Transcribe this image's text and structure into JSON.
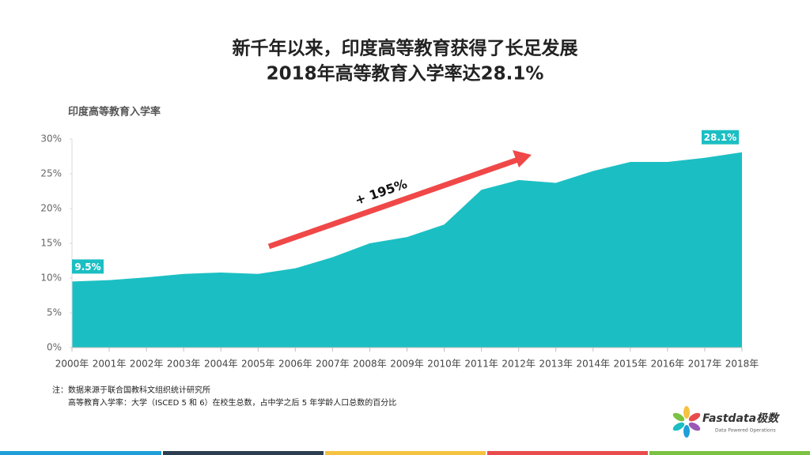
{
  "chart_data": {
    "type": "area",
    "title": "新千年以来，印度高等教育获得了长足发展",
    "subtitle": "2018年高等教育入学率达28.1%",
    "y_label": "印度高等教育入学率",
    "categories": [
      "2000年",
      "2001年",
      "2002年",
      "2003年",
      "2004年",
      "2005年",
      "2006年",
      "2007年",
      "2008年",
      "2009年",
      "2010年",
      "2011年",
      "2012年",
      "2013年",
      "2014年",
      "2015年",
      "2016年",
      "2017年",
      "2018年"
    ],
    "values": [
      9.5,
      9.7,
      10.1,
      10.6,
      10.8,
      10.6,
      11.4,
      13.0,
      15.0,
      15.9,
      17.7,
      22.7,
      24.1,
      23.7,
      25.4,
      26.7,
      26.7,
      27.3,
      28.1
    ],
    "value_labels": [
      "9.5%",
      null,
      null,
      null,
      null,
      null,
      null,
      null,
      null,
      null,
      null,
      null,
      null,
      null,
      null,
      null,
      null,
      null,
      "28.1%"
    ],
    "color": "#1bbfc3",
    "ylim": [
      0,
      30
    ],
    "yticks": [
      {
        "value": 0,
        "label": "0%"
      },
      {
        "value": 5,
        "label": "5%"
      },
      {
        "value": 10,
        "label": "10%"
      },
      {
        "value": 15,
        "label": "15%"
      },
      {
        "value": 20,
        "label": "20%"
      },
      {
        "value": 25,
        "label": "25%"
      },
      {
        "value": 30,
        "label": "30%"
      }
    ],
    "grid": false,
    "annotation": "+ 195%",
    "notes": [
      "注：数据来源于联合国教科文组织统计研究所",
      "高等教育入学率：大学（ISCED 5 和 6）在校生总数，占中学之后 5 年学龄人口总数的百分比"
    ],
    "logo": {
      "name": "Fastdata极数",
      "tagline": "Data Powered Operations"
    }
  }
}
